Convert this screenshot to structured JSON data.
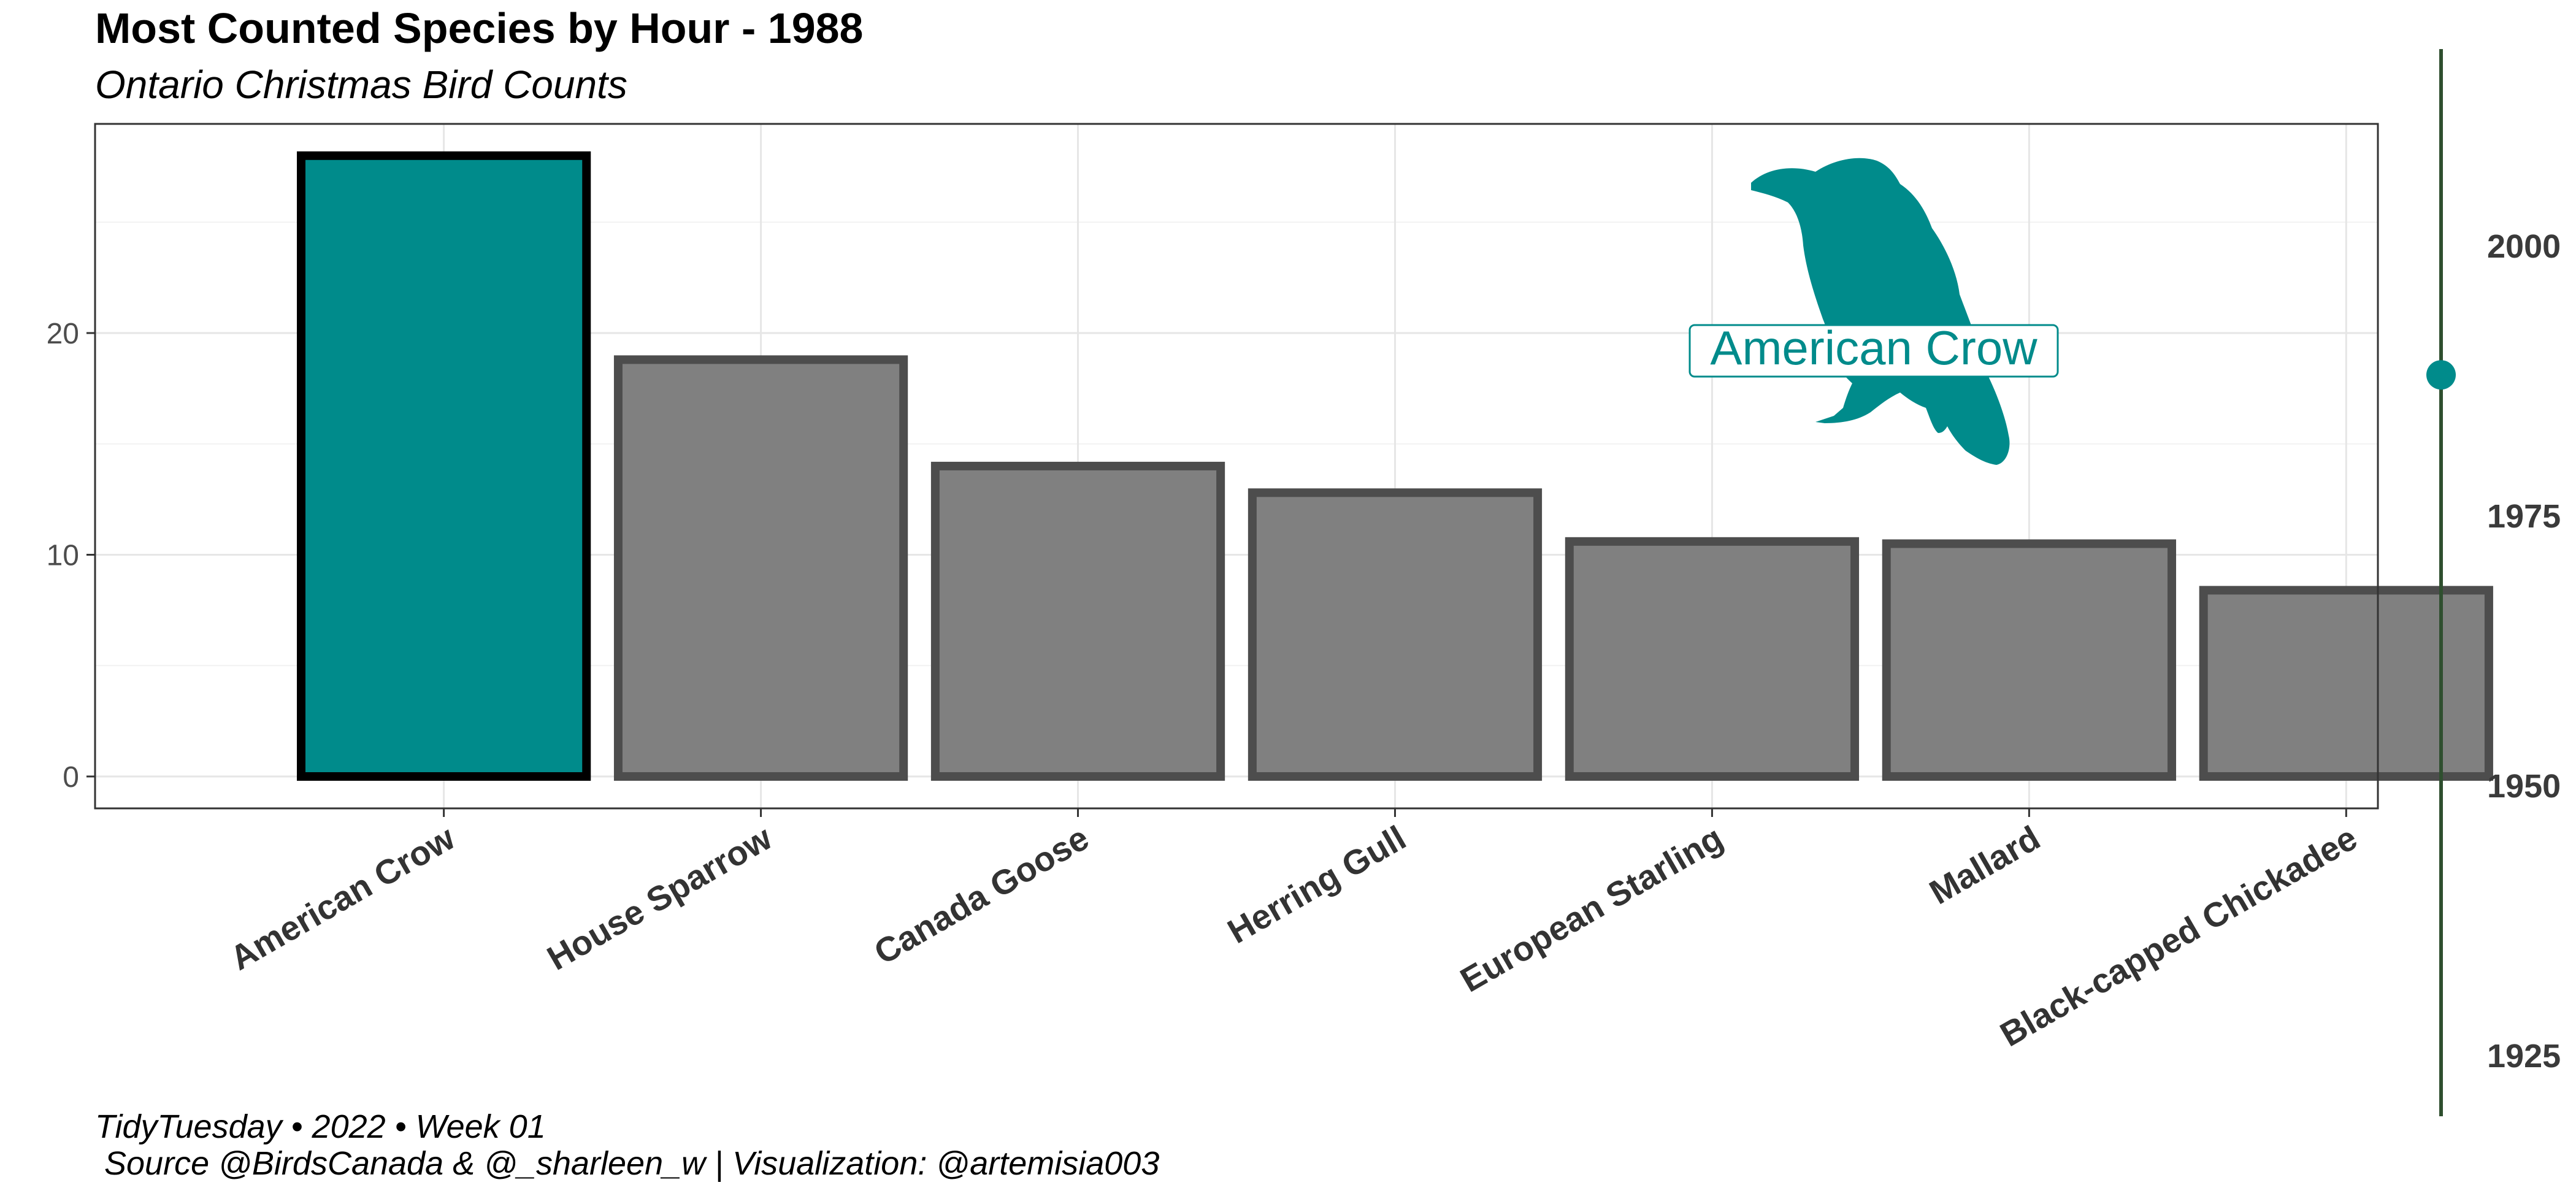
{
  "chart_data": {
    "type": "bar",
    "title": "Most Counted Species by Hour - 1988",
    "subtitle": "Ontario Christmas Bird Counts",
    "xlabel": "",
    "ylabel": "",
    "categories": [
      "American Crow",
      "House Sparrow",
      "Canada Goose",
      "Herring Gull",
      "European Starling",
      "Mallard",
      "Black-capped Chickadee"
    ],
    "values": [
      28,
      18.8,
      14,
      12.8,
      10.6,
      10.5,
      8.4
    ],
    "highlight": "American Crow",
    "highlight_color": "#008B8B",
    "bar_color": "#808080",
    "bar_outline_color": "#4d4d4d",
    "ylim": [
      0,
      29.4
    ],
    "yticks": [
      0,
      10,
      20
    ],
    "grid": true,
    "annotation": {
      "label": "American Crow",
      "icon": "crow-silhouette-icon",
      "color": "#008B8B"
    },
    "time_slider": {
      "ticks": [
        1925,
        1950,
        1975,
        2000
      ],
      "range": [
        1920,
        2021
      ],
      "current": 1988,
      "color": "#008B8B",
      "line_color": "#2f4f2f"
    },
    "caption": [
      "TidyTuesday • 2022 • Week 01",
      "Source @BirdsCanada & @_sharleen_w  |  Visualization: @artemisia003"
    ]
  }
}
